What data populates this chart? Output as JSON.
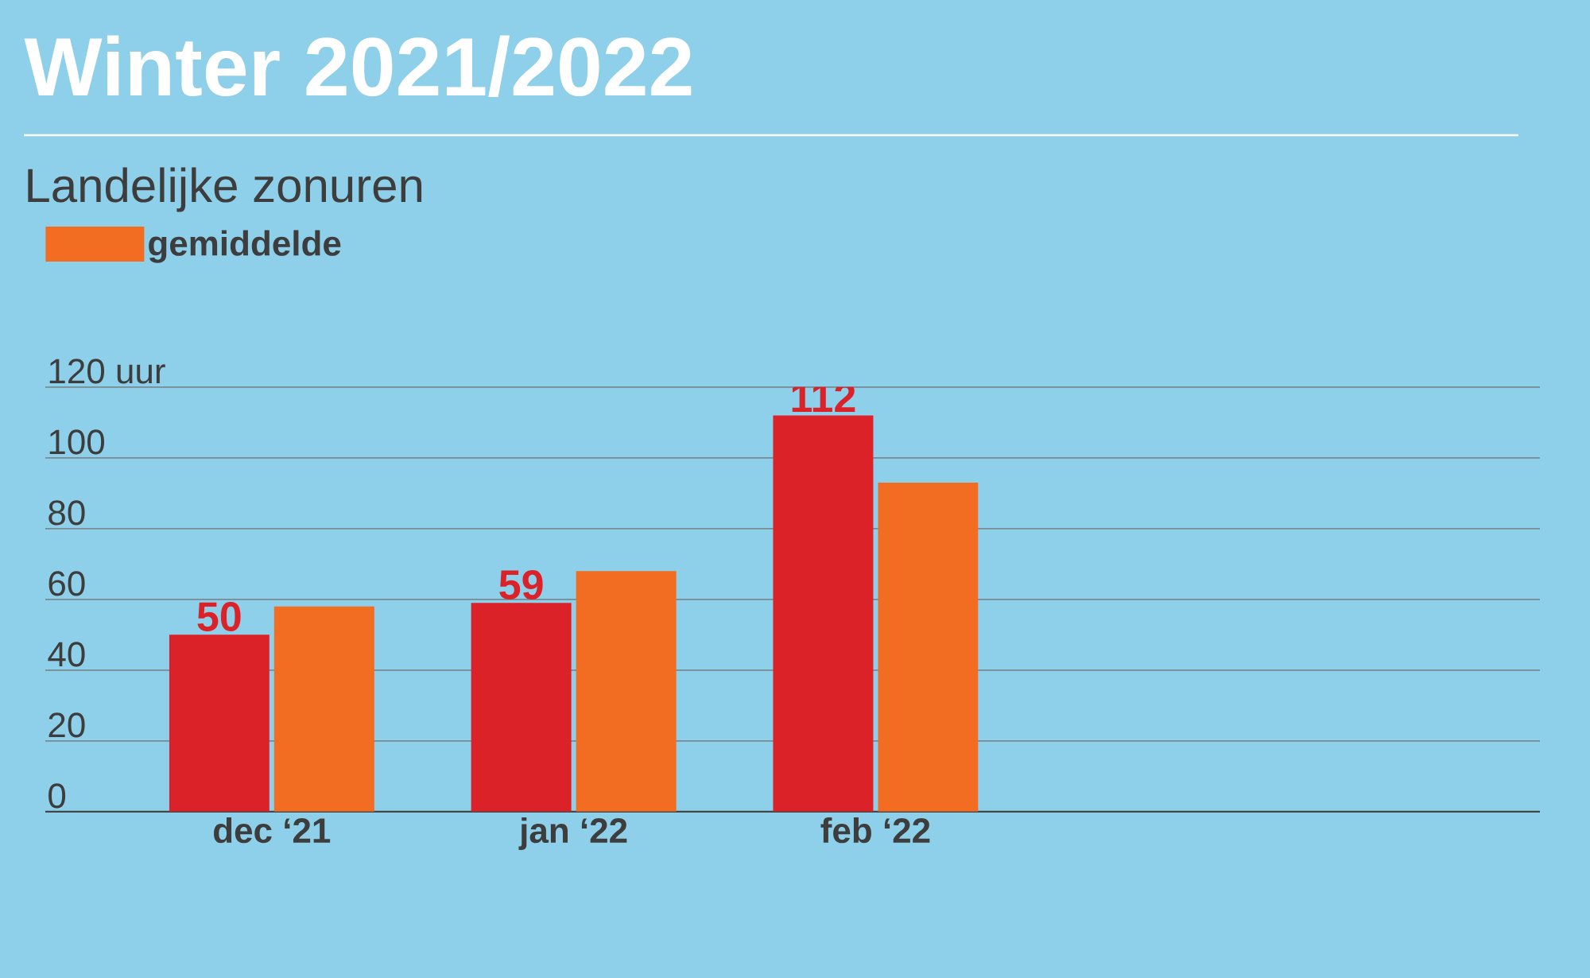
{
  "chart_data": {
    "type": "bar",
    "title": "Winter 2021/2022",
    "subtitle": "Landelijke zonuren",
    "categories": [
      "dec ‘21",
      "jan ‘22",
      "feb ‘22"
    ],
    "series": [
      {
        "color": "#dc2229",
        "values": [
          50,
          59,
          112
        ],
        "value_labels": [
          "50",
          "59",
          "112"
        ]
      },
      {
        "name": "gemiddelde",
        "color": "#f26d21",
        "values": [
          58,
          68,
          93
        ]
      }
    ],
    "ylim": [
      0,
      120
    ],
    "yticks": [
      0,
      20,
      40,
      60,
      80,
      {
        "value": 100,
        "label": "100"
      },
      {
        "value": 120,
        "label": "120 uur"
      }
    ],
    "grid": "y",
    "legend": "top left"
  }
}
